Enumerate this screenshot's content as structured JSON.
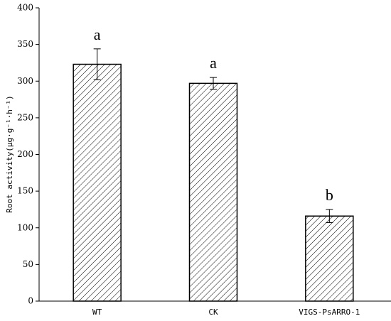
{
  "chart_data": {
    "type": "bar",
    "y_label": "Root activity(μg·g⁻¹·h⁻¹)",
    "categories": [
      "WT",
      "CK",
      "VIGS-PsARRO-1"
    ],
    "values": [
      323,
      297,
      116
    ],
    "errors": [
      21,
      8,
      9
    ],
    "significance_letters": [
      "a",
      "a",
      "b"
    ],
    "color": "#000000",
    "fill": "hatched",
    "ylim": [
      0,
      400
    ],
    "yticks": [
      0,
      50,
      100,
      150,
      200,
      250,
      300,
      350,
      400
    ],
    "grid": false
  }
}
